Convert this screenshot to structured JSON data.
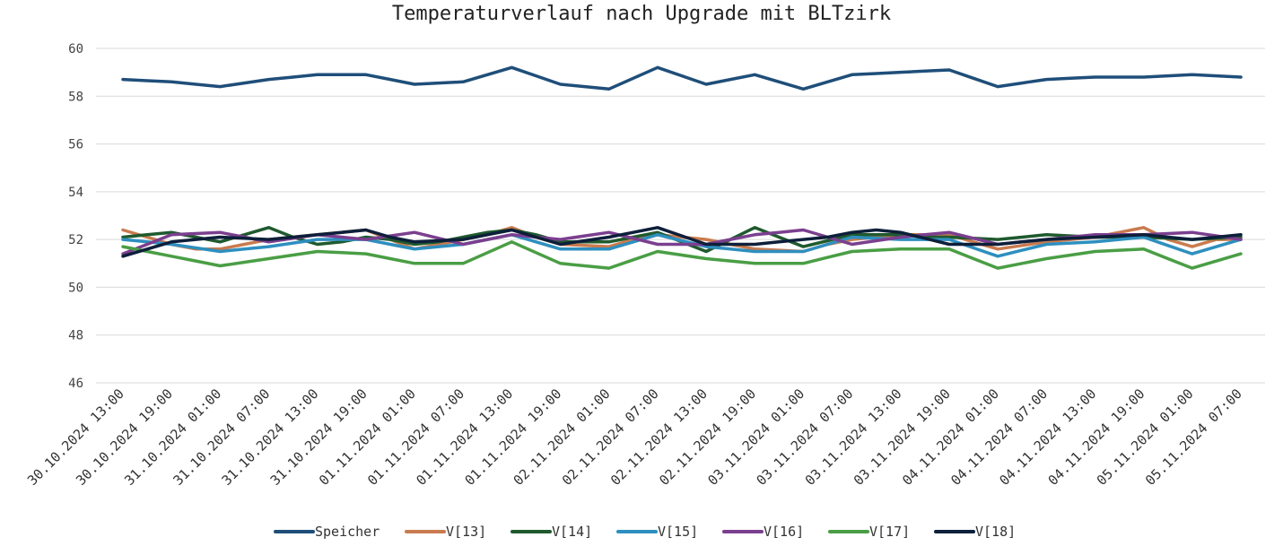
{
  "chart_data": {
    "type": "line",
    "title": "Temperaturverlauf nach Upgrade mit BLTzirk",
    "xlabel": "",
    "ylabel": "",
    "ylim": [
      46,
      60
    ],
    "yticks": [
      "46",
      "48",
      "50",
      "52",
      "54",
      "56",
      "58",
      "60"
    ],
    "grid": true,
    "legend_position": "bottom",
    "categories": [
      "30.10.2024 13:00",
      "30.10.2024 19:00",
      "31.10.2024 01:00",
      "31.10.2024 07:00",
      "31.10.2024 13:00",
      "31.10.2024 19:00",
      "01.11.2024 01:00",
      "01.11.2024 07:00",
      "01.11.2024 13:00",
      "01.11.2024 19:00",
      "02.11.2024 01:00",
      "02.11.2024 07:00",
      "02.11.2024 13:00",
      "02.11.2024 19:00",
      "03.11.2024 01:00",
      "03.11.2024 07:00",
      "03.11.2024 13:00",
      "03.11.2024 19:00",
      "04.11.2024 01:00",
      "04.11.2024 07:00",
      "04.11.2024 13:00",
      "04.11.2024 19:00",
      "05.11.2024 01:00",
      "05.11.2024 07:00"
    ],
    "x": [
      0,
      0.5,
      1,
      1.5,
      2,
      2.5,
      3,
      3.5,
      4,
      4.5,
      5,
      5.5,
      6,
      6.5,
      7,
      7.5,
      8,
      8.5,
      9,
      9.5,
      10,
      10.5,
      11,
      11.5,
      12,
      12.5,
      13,
      13.5,
      14,
      14.5,
      15,
      15.5,
      16,
      16.5,
      17,
      17.5,
      18,
      18.5,
      19,
      19.5,
      20,
      20.5,
      21,
      21.5,
      22,
      22.5,
      23
    ],
    "series": [
      {
        "name": "Speicher",
        "color": "#1f4e79",
        "values": [
          58.7,
          58.65,
          58.6,
          58.5,
          58.4,
          58.55,
          58.7,
          58.8,
          58.9,
          58.9,
          58.9,
          58.7,
          58.5,
          58.55,
          58.6,
          58.9,
          59.2,
          58.85,
          58.5,
          58.4,
          58.3,
          58.75,
          59.2,
          58.85,
          58.5,
          58.7,
          58.9,
          58.6,
          58.3,
          58.6,
          58.9,
          58.95,
          59.0,
          59.05,
          59.1,
          58.75,
          58.4,
          58.55,
          58.7,
          58.75,
          58.8,
          58.8,
          58.8,
          58.85,
          58.9,
          58.85,
          58.8
        ]
      },
      {
        "name": "V[13]",
        "color": "#c97b4f",
        "values": [
          52.4,
          52.1,
          51.8,
          51.6,
          51.6,
          51.8,
          52.0,
          52.1,
          52.2,
          52.3,
          52.4,
          52.0,
          51.6,
          51.8,
          52.0,
          52.2,
          52.5,
          52.1,
          51.8,
          51.75,
          51.7,
          52.0,
          52.2,
          52.1,
          52.0,
          51.8,
          51.6,
          51.55,
          51.5,
          51.8,
          52.0,
          52.1,
          52.2,
          52.2,
          52.2,
          51.9,
          51.6,
          51.75,
          51.9,
          52.0,
          52.1,
          52.3,
          52.5,
          52.0,
          51.7,
          52.0,
          52.0
        ]
      },
      {
        "name": "V[14]",
        "color": "#1f5a2e",
        "values": [
          52.1,
          52.2,
          52.3,
          52.1,
          51.9,
          52.2,
          52.5,
          52.1,
          51.8,
          51.9,
          52.1,
          52.0,
          51.8,
          51.9,
          52.1,
          52.3,
          52.4,
          52.2,
          51.9,
          51.9,
          51.9,
          52.1,
          52.3,
          51.9,
          51.5,
          52.0,
          52.5,
          52.1,
          51.7,
          51.95,
          52.2,
          52.2,
          52.2,
          52.1,
          52.1,
          52.05,
          52.0,
          52.1,
          52.2,
          52.15,
          52.1,
          52.1,
          52.1,
          52.05,
          52.0,
          52.05,
          52.1
        ]
      },
      {
        "name": "V[15]",
        "color": "#2e8fbf",
        "values": [
          52.0,
          51.9,
          51.8,
          51.65,
          51.5,
          51.6,
          51.7,
          51.85,
          52.0,
          52.0,
          52.0,
          51.8,
          51.6,
          51.7,
          51.8,
          52.0,
          52.2,
          51.9,
          51.6,
          51.6,
          51.6,
          51.9,
          52.2,
          51.95,
          51.7,
          51.6,
          51.5,
          51.5,
          51.5,
          51.8,
          52.1,
          52.05,
          52.0,
          52.0,
          52.0,
          51.65,
          51.3,
          51.55,
          51.8,
          51.85,
          51.9,
          52.0,
          52.1,
          51.75,
          51.4,
          51.7,
          52.0
        ]
      },
      {
        "name": "V[16]",
        "color": "#7b3f8f",
        "values": [
          51.4,
          51.8,
          52.2,
          52.25,
          52.3,
          52.1,
          51.9,
          52.05,
          52.2,
          52.1,
          52.0,
          52.15,
          52.3,
          52.05,
          51.8,
          52.0,
          52.2,
          52.1,
          52.0,
          52.15,
          52.3,
          52.05,
          51.8,
          51.8,
          51.8,
          52.0,
          52.2,
          52.3,
          52.4,
          52.1,
          51.8,
          51.95,
          52.1,
          52.2,
          52.3,
          52.05,
          51.8,
          51.9,
          52.0,
          52.1,
          52.2,
          52.2,
          52.2,
          52.25,
          52.3,
          52.15,
          52.0
        ]
      },
      {
        "name": "V[17]",
        "color": "#4a9e45",
        "values": [
          51.7,
          51.5,
          51.3,
          51.1,
          50.9,
          51.05,
          51.2,
          51.35,
          51.5,
          51.45,
          51.4,
          51.2,
          51.0,
          51.0,
          51.0,
          51.45,
          51.9,
          51.45,
          51.0,
          50.9,
          50.8,
          51.15,
          51.5,
          51.35,
          51.2,
          51.1,
          51.0,
          51.0,
          51.0,
          51.25,
          51.5,
          51.55,
          51.6,
          51.6,
          51.6,
          51.2,
          50.8,
          51.0,
          51.2,
          51.35,
          51.5,
          51.55,
          51.6,
          51.2,
          50.8,
          51.1,
          51.4
        ]
      },
      {
        "name": "V[18]",
        "color": "#0d1f3a",
        "values": [
          51.3,
          51.6,
          51.9,
          52.0,
          52.1,
          52.05,
          52.0,
          52.1,
          52.2,
          52.3,
          52.4,
          52.1,
          51.9,
          51.95,
          52.0,
          52.2,
          52.4,
          52.1,
          51.8,
          51.95,
          52.1,
          52.3,
          52.5,
          52.15,
          51.8,
          51.8,
          51.8,
          51.9,
          52.0,
          52.1,
          52.3,
          52.4,
          52.3,
          52.05,
          51.8,
          51.8,
          51.8,
          51.9,
          52.0,
          52.05,
          52.1,
          52.15,
          52.2,
          52.1,
          52.0,
          52.1,
          52.2
        ]
      }
    ]
  }
}
